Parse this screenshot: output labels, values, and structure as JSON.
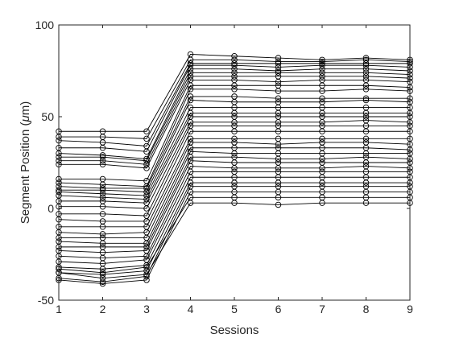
{
  "chart_data": {
    "type": "line",
    "xlabel": "Sessions",
    "ylabel_prefix": "Segment Position (",
    "ylabel_mu": "μ",
    "ylabel_suffix": "m)",
    "x": [
      1,
      2,
      3,
      4,
      5,
      6,
      7,
      8,
      9
    ],
    "xlim": [
      1,
      9
    ],
    "ylim": [
      -50,
      100
    ],
    "xticks": [
      "1",
      "2",
      "3",
      "4",
      "5",
      "6",
      "7",
      "8",
      "9"
    ],
    "yticks": [
      "-50",
      "0",
      "50",
      "100"
    ],
    "ytick_values": [
      -50,
      0,
      50,
      100
    ],
    "grid": false,
    "box": true,
    "marker": "open-circle",
    "color": "#000000",
    "series": [
      {
        "values": [
          42,
          42,
          42,
          84,
          83,
          82,
          81,
          82,
          81
        ]
      },
      {
        "values": [
          39,
          39,
          38,
          81,
          81,
          80,
          80,
          81,
          80
        ]
      },
      {
        "values": [
          37,
          36,
          34,
          79,
          79,
          79,
          79,
          79,
          79
        ]
      },
      {
        "values": [
          33,
          33,
          31,
          78,
          78,
          77,
          78,
          78,
          77
        ]
      },
      {
        "values": [
          30,
          29,
          27,
          76,
          76,
          75,
          76,
          76,
          75
        ]
      },
      {
        "values": [
          28,
          28,
          26,
          74,
          74,
          74,
          74,
          74,
          73
        ]
      },
      {
        "values": [
          26,
          26,
          24,
          72,
          72,
          72,
          72,
          72,
          71
        ]
      },
      {
        "values": [
          24,
          24,
          22,
          70,
          70,
          69,
          70,
          70,
          69
        ]
      },
      {
        "values": [
          16,
          16,
          15,
          67,
          67,
          67,
          67,
          67,
          66
        ]
      },
      {
        "values": [
          14,
          13,
          12,
          65,
          65,
          64,
          64,
          65,
          64
        ]
      },
      {
        "values": [
          12,
          11,
          11,
          61,
          61,
          60,
          60,
          60,
          60
        ]
      },
      {
        "values": [
          10,
          10,
          9,
          59,
          58,
          58,
          58,
          59,
          58
        ]
      },
      {
        "values": [
          9,
          8,
          7,
          55,
          55,
          55,
          55,
          55,
          55
        ]
      },
      {
        "values": [
          7,
          6,
          5,
          52,
          52,
          52,
          52,
          52,
          52
        ]
      },
      {
        "values": [
          4,
          4,
          3,
          50,
          50,
          50,
          50,
          50,
          50
        ]
      },
      {
        "values": [
          1,
          1,
          0,
          47,
          47,
          47,
          47,
          48,
          47
        ]
      },
      {
        "values": [
          -3,
          -3,
          -4,
          45,
          45,
          45,
          45,
          45,
          45
        ]
      },
      {
        "values": [
          -6,
          -7,
          -7,
          42,
          42,
          42,
          42,
          42,
          42
        ]
      },
      {
        "values": [
          -10,
          -10,
          -10,
          38,
          38,
          38,
          38,
          38,
          38
        ]
      },
      {
        "values": [
          -13,
          -14,
          -13,
          36,
          36,
          35,
          36,
          36,
          35
        ]
      },
      {
        "values": [
          -16,
          -16,
          -16,
          33,
          33,
          33,
          33,
          33,
          32
        ]
      },
      {
        "values": [
          -18,
          -19,
          -19,
          31,
          30,
          30,
          30,
          30,
          30
        ]
      },
      {
        "values": [
          -21,
          -21,
          -21,
          28,
          28,
          27,
          27,
          28,
          27
        ]
      },
      {
        "values": [
          -23,
          -24,
          -23,
          26,
          25,
          25,
          25,
          25,
          25
        ]
      },
      {
        "values": [
          -26,
          -27,
          -26,
          23,
          22,
          22,
          22,
          23,
          22
        ]
      },
      {
        "values": [
          -29,
          -30,
          -28,
          20,
          20,
          20,
          20,
          20,
          20
        ]
      },
      {
        "values": [
          -32,
          -33,
          -31,
          17,
          17,
          17,
          17,
          17,
          17
        ]
      },
      {
        "values": [
          -35,
          -36,
          -34,
          14,
          14,
          14,
          14,
          14,
          14
        ]
      },
      {
        "values": [
          -38,
          -40,
          -37,
          12,
          12,
          12,
          12,
          12,
          12
        ]
      },
      {
        "values": [
          -39,
          -41,
          -39,
          9,
          9,
          9,
          9,
          9,
          9
        ]
      },
      {
        "values": [
          -33,
          -35,
          -32,
          6,
          6,
          6,
          6,
          6,
          6
        ]
      },
      {
        "values": [
          -35,
          -38,
          -36,
          3,
          3,
          2,
          3,
          3,
          3
        ]
      }
    ]
  }
}
